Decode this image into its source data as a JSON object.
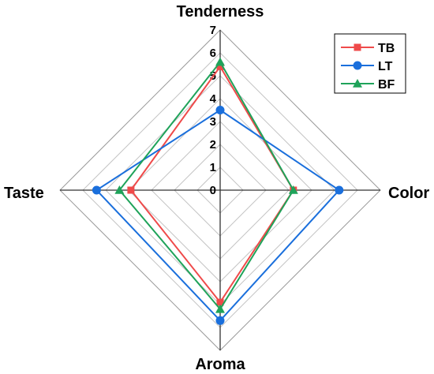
{
  "chart_data": {
    "type": "radar",
    "axes": [
      "Tenderness",
      "Color",
      "Aroma",
      "Taste"
    ],
    "rmax": 7,
    "ticks": [
      "0",
      "1",
      "2",
      "3",
      "4",
      "5",
      "6",
      "7"
    ],
    "grid": true,
    "legend_position": "top-right",
    "series": [
      {
        "name": "TB",
        "color": "#ef4a4a",
        "marker": "square",
        "values": [
          5.4,
          3.2,
          4.9,
          3.9
        ]
      },
      {
        "name": "LT",
        "color": "#1a6fdc",
        "marker": "circle",
        "values": [
          3.5,
          5.2,
          5.7,
          5.4
        ]
      },
      {
        "name": "BF",
        "color": "#1fa35a",
        "marker": "triangle",
        "values": [
          5.6,
          3.2,
          5.2,
          4.4
        ]
      }
    ]
  }
}
